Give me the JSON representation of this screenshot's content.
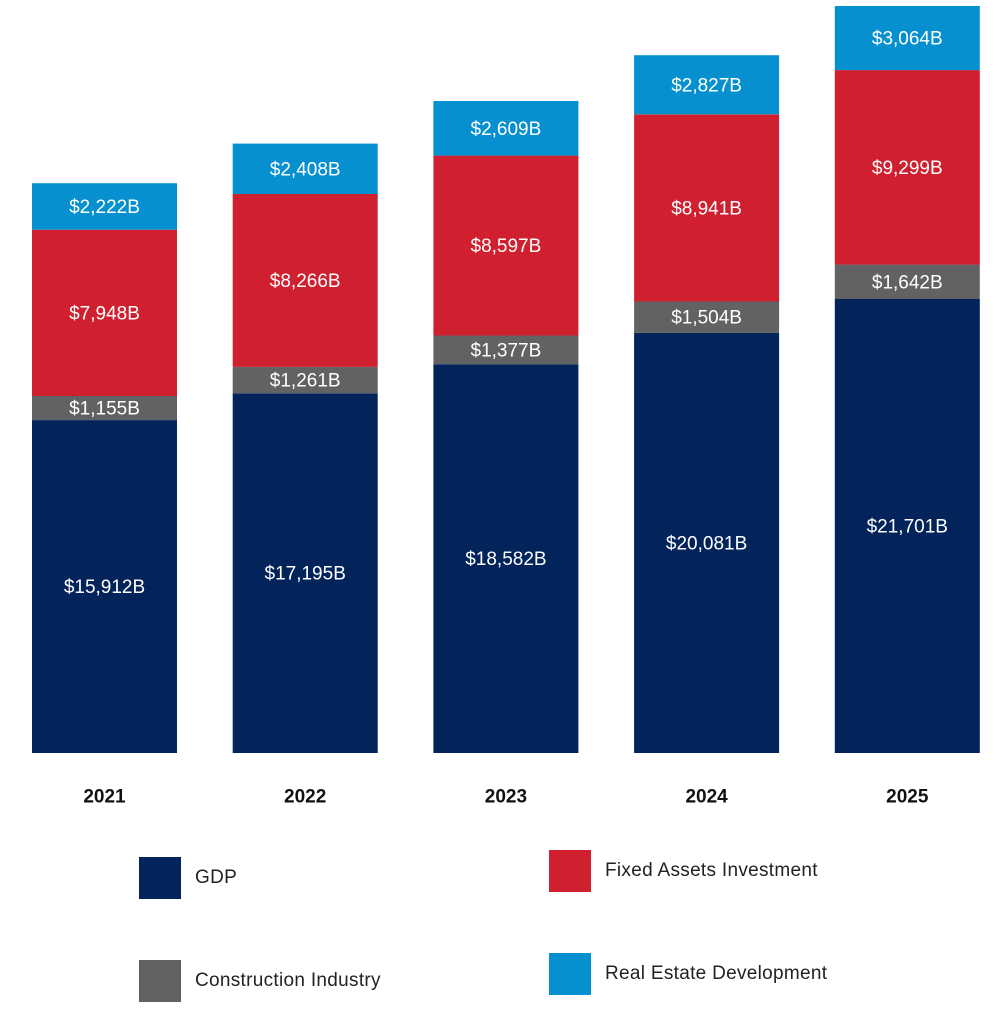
{
  "chart_data": {
    "type": "bar",
    "stacked": true,
    "categories": [
      "2021",
      "2022",
      "2023",
      "2024",
      "2025"
    ],
    "series": [
      {
        "name": "GDP",
        "color": "#03235b",
        "values": [
          15912,
          17195,
          18582,
          20081,
          21701
        ],
        "labels": [
          "$15,912B",
          "$17,195B",
          "$18,582B",
          "$20,081B",
          "$21,701B"
        ]
      },
      {
        "name": "Construction Industry",
        "color": "#616264",
        "values": [
          1155,
          1261,
          1377,
          1504,
          1642
        ],
        "labels": [
          "$1,155B",
          "$1,261B",
          "$1,377B",
          "$1,504B",
          "$1,642B"
        ]
      },
      {
        "name": "Fixed Assets Investment",
        "color": "#d02030",
        "values": [
          7948,
          8266,
          8597,
          8941,
          9299
        ],
        "labels": [
          "$7,948B",
          "$8,266B",
          "$8,597B",
          "$8,941B",
          "$9,299B"
        ]
      },
      {
        "name": "Real Estate Development",
        "color": "#0790d0",
        "values": [
          2222,
          2408,
          2609,
          2827,
          3064
        ],
        "labels": [
          "$2,222B",
          "$2,408B",
          "$2,609B",
          "$2,827B",
          "$3,064B"
        ]
      }
    ],
    "legend_position": "bottom",
    "grid": false,
    "ylim": [
      0,
      35706
    ]
  }
}
